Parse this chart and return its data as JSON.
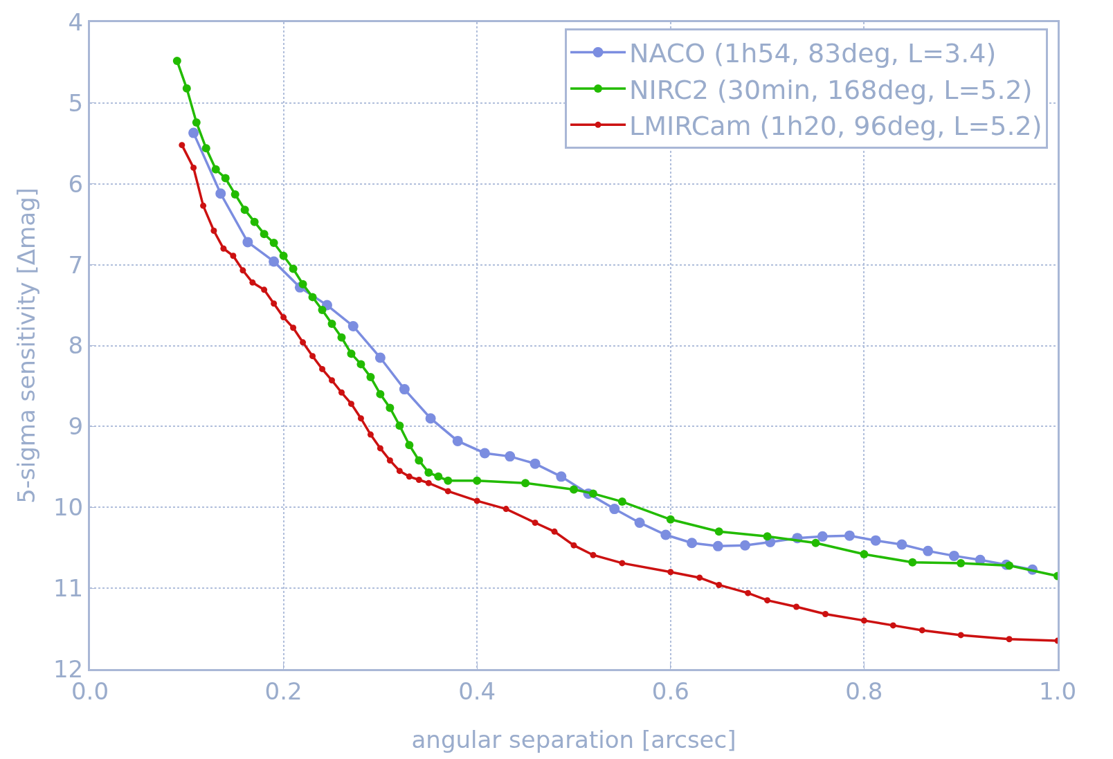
{
  "chart_data": {
    "type": "line",
    "xlabel": "angular separation [arcsec]",
    "ylabel": "5-sigma sensitivity [Δmag]",
    "xlim": [
      0,
      1
    ],
    "xticks": [
      {
        "value": 0,
        "label": "0.0"
      },
      {
        "value": 0.2,
        "label": "0.2"
      },
      {
        "value": 0.4,
        "label": "0.4"
      },
      {
        "value": 0.6,
        "label": "0.6"
      },
      {
        "value": 0.8,
        "label": "0.8"
      },
      {
        "value": 1,
        "label": "1.0"
      }
    ],
    "ylim": [
      12,
      4
    ],
    "yticks": [
      4,
      5,
      6,
      7,
      8,
      9,
      10,
      11,
      12
    ],
    "grid": true,
    "legend": "top right",
    "marker": "circle",
    "line_style": "solid",
    "series": [
      {
        "name": "NACO (1h54, 83deg, L=3.4)",
        "color": "#7b8de0",
        "x": [
          0.107,
          0.135,
          0.163,
          0.19,
          0.217,
          0.245,
          0.272,
          0.3,
          0.325,
          0.352,
          0.38,
          0.408,
          0.434,
          0.46,
          0.487,
          0.515,
          0.542,
          0.568,
          0.595,
          0.622,
          0.649,
          0.677,
          0.703,
          0.731,
          0.757,
          0.785,
          0.812,
          0.839,
          0.866,
          0.893,
          0.92,
          0.947,
          0.974
        ],
        "values": [
          5.37,
          6.12,
          6.72,
          6.96,
          7.28,
          7.5,
          7.76,
          8.15,
          8.54,
          8.9,
          9.18,
          9.33,
          9.37,
          9.46,
          9.62,
          9.83,
          10.02,
          10.19,
          10.34,
          10.44,
          10.48,
          10.47,
          10.43,
          10.38,
          10.36,
          10.35,
          10.41,
          10.46,
          10.54,
          10.6,
          10.65,
          10.71,
          10.77
        ]
      },
      {
        "name": "NIRC2 (30min, 168deg, L=5.2)",
        "color": "#22bb00",
        "x": [
          0.09,
          0.1,
          0.11,
          0.12,
          0.13,
          0.14,
          0.15,
          0.16,
          0.17,
          0.18,
          0.19,
          0.2,
          0.21,
          0.22,
          0.23,
          0.24,
          0.25,
          0.26,
          0.27,
          0.28,
          0.29,
          0.3,
          0.31,
          0.32,
          0.33,
          0.34,
          0.35,
          0.36,
          0.37,
          0.4,
          0.45,
          0.5,
          0.52,
          0.55,
          0.6,
          0.65,
          0.7,
          0.75,
          0.8,
          0.85,
          0.9,
          0.95,
          1.0
        ],
        "values": [
          4.48,
          4.82,
          5.24,
          5.56,
          5.82,
          5.93,
          6.13,
          6.32,
          6.47,
          6.62,
          6.73,
          6.89,
          7.05,
          7.24,
          7.4,
          7.56,
          7.73,
          7.9,
          8.1,
          8.23,
          8.39,
          8.6,
          8.77,
          8.99,
          9.23,
          9.42,
          9.57,
          9.62,
          9.67,
          9.67,
          9.7,
          9.78,
          9.83,
          9.93,
          10.15,
          10.3,
          10.36,
          10.44,
          10.58,
          10.68,
          10.69,
          10.72,
          10.85
        ]
      },
      {
        "name": "LMIRCam (1h20, 96deg, L=5.2)",
        "color": "#cc1111",
        "x": [
          0.095,
          0.107,
          0.117,
          0.128,
          0.138,
          0.148,
          0.158,
          0.168,
          0.18,
          0.19,
          0.2,
          0.21,
          0.22,
          0.23,
          0.24,
          0.25,
          0.26,
          0.27,
          0.28,
          0.29,
          0.3,
          0.31,
          0.32,
          0.33,
          0.34,
          0.35,
          0.37,
          0.4,
          0.43,
          0.46,
          0.48,
          0.5,
          0.52,
          0.55,
          0.6,
          0.63,
          0.65,
          0.68,
          0.7,
          0.73,
          0.76,
          0.8,
          0.83,
          0.86,
          0.9,
          0.95,
          1.0
        ],
        "values": [
          5.52,
          5.8,
          6.27,
          6.58,
          6.8,
          6.89,
          7.07,
          7.22,
          7.31,
          7.48,
          7.65,
          7.78,
          7.96,
          8.13,
          8.29,
          8.43,
          8.58,
          8.72,
          8.9,
          9.1,
          9.27,
          9.42,
          9.55,
          9.62,
          9.66,
          9.7,
          9.8,
          9.92,
          10.02,
          10.19,
          10.3,
          10.47,
          10.59,
          10.69,
          10.8,
          10.87,
          10.96,
          11.06,
          11.15,
          11.23,
          11.32,
          11.4,
          11.46,
          11.52,
          11.58,
          11.63,
          11.65
        ]
      }
    ]
  }
}
